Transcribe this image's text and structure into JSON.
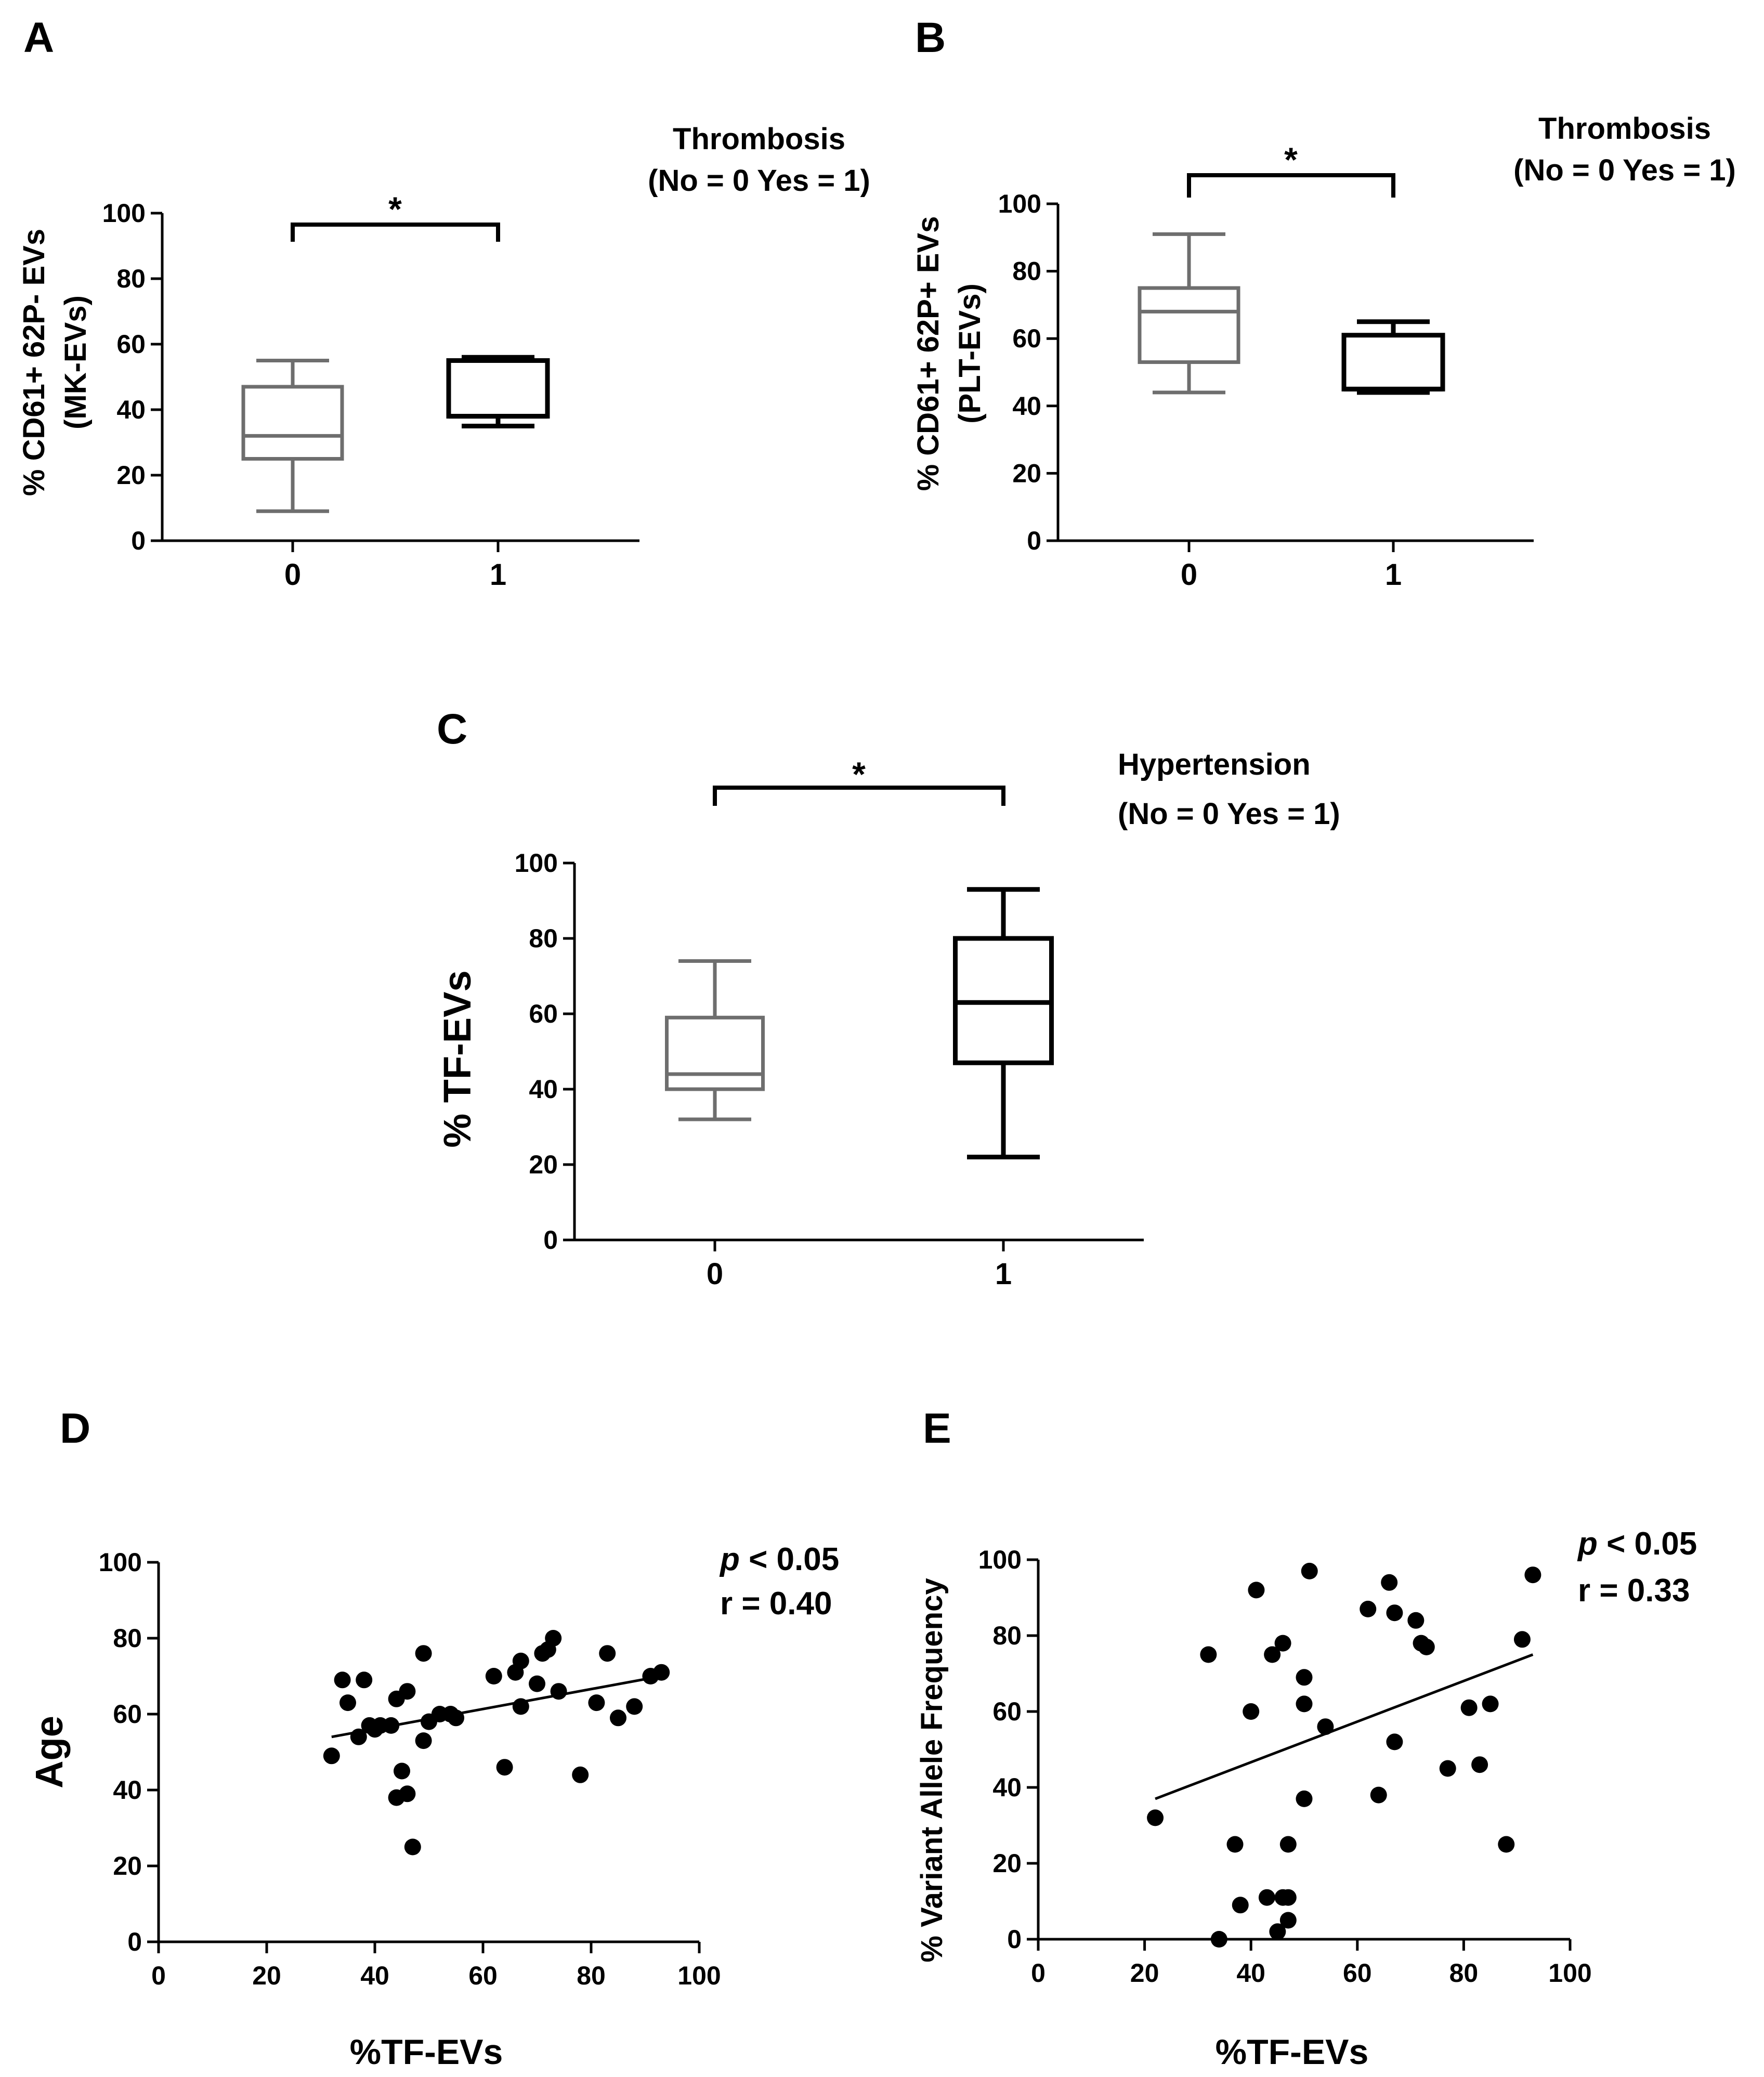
{
  "colors": {
    "group0": "#6e6e6e",
    "group1": "#000000",
    "axis": "#000000",
    "point": "#000000"
  },
  "chart_data": [
    {
      "id": "A",
      "type": "box",
      "panel_label": "A",
      "ylabel_lines": [
        "% CD61+ 62P- EVs",
        "(MK-EVs)"
      ],
      "legend_lines": [
        "Thrombosis",
        "(No = 0 Yes = 1)"
      ],
      "categories": [
        "0",
        "1"
      ],
      "yticks": [
        "0",
        "20",
        "40",
        "60",
        "80",
        "100"
      ],
      "ylim": [
        0,
        100
      ],
      "boxes": [
        {
          "category": "0",
          "min": 9,
          "q1": 25,
          "median": 32,
          "q3": 47,
          "max": 55
        },
        {
          "category": "1",
          "min": 35,
          "q1": 38,
          "median": 38,
          "q3": 55,
          "max": 56
        }
      ],
      "significance": "*"
    },
    {
      "id": "B",
      "type": "box",
      "panel_label": "B",
      "ylabel_lines": [
        "% CD61+ 62P+ EVs",
        "(PLT-EVs)"
      ],
      "legend_lines": [
        "Thrombosis",
        "(No = 0 Yes = 1)"
      ],
      "categories": [
        "0",
        "1"
      ],
      "yticks": [
        "0",
        "20",
        "40",
        "60",
        "80",
        "100"
      ],
      "ylim": [
        0,
        100
      ],
      "boxes": [
        {
          "category": "0",
          "min": 44,
          "q1": 53,
          "median": 68,
          "q3": 75,
          "max": 91
        },
        {
          "category": "1",
          "min": 44,
          "q1": 45,
          "median": 45,
          "q3": 61,
          "max": 65
        }
      ],
      "significance": "*"
    },
    {
      "id": "C",
      "type": "box",
      "panel_label": "C",
      "ylabel_lines": [
        "% TF-EVs"
      ],
      "legend_lines": [
        "Hypertension",
        "(No = 0 Yes = 1)"
      ],
      "categories": [
        "0",
        "1"
      ],
      "yticks": [
        "0",
        "20",
        "40",
        "60",
        "80",
        "100"
      ],
      "ylim": [
        0,
        100
      ],
      "boxes": [
        {
          "category": "0",
          "min": 32,
          "q1": 40,
          "median": 44,
          "q3": 59,
          "max": 74
        },
        {
          "category": "1",
          "min": 22,
          "q1": 47,
          "median": 63,
          "q3": 80,
          "max": 93
        }
      ],
      "significance": "*"
    },
    {
      "id": "D",
      "type": "scatter",
      "panel_label": "D",
      "xlabel": "%TF-EVs",
      "ylabel": "Age",
      "xticks": [
        "0",
        "20",
        "40",
        "60",
        "80",
        "100"
      ],
      "yticks": [
        "0",
        "20",
        "40",
        "60",
        "80",
        "100"
      ],
      "xlim": [
        0,
        100
      ],
      "ylim": [
        0,
        100
      ],
      "p_text": "p",
      "p_rest": " < 0.05",
      "r_text": "r = 0.40",
      "fit": {
        "x": [
          32,
          93
        ],
        "y": [
          54,
          70
        ]
      },
      "x": [
        32,
        34,
        35,
        37,
        38,
        39,
        40,
        41,
        43,
        44,
        44,
        45,
        46,
        46,
        47,
        49,
        49,
        50,
        52,
        54,
        55,
        62,
        64,
        66,
        67,
        67,
        70,
        71,
        72,
        73,
        74,
        78,
        81,
        83,
        85,
        88,
        91,
        93
      ],
      "y": [
        49,
        69,
        63,
        54,
        69,
        57,
        56,
        57,
        57,
        64,
        38,
        45,
        66,
        39,
        25,
        76,
        53,
        58,
        60,
        60,
        59,
        70,
        46,
        71,
        74,
        62,
        68,
        76,
        77,
        80,
        66,
        44,
        63,
        76,
        59,
        62,
        70,
        71
      ]
    },
    {
      "id": "E",
      "type": "scatter",
      "panel_label": "E",
      "xlabel": "%TF-EVs",
      "ylabel": "% Variant Allele Frequency",
      "xticks": [
        "0",
        "20",
        "40",
        "60",
        "80",
        "100"
      ],
      "yticks": [
        "0",
        "20",
        "40",
        "60",
        "80",
        "100"
      ],
      "xlim": [
        0,
        100
      ],
      "ylim": [
        0,
        100
      ],
      "p_text": "p",
      "p_rest": " < 0.05",
      "r_text": "r = 0.33",
      "fit": {
        "x": [
          22,
          93
        ],
        "y": [
          37,
          75
        ]
      },
      "x": [
        22,
        32,
        34,
        37,
        38,
        40,
        41,
        43,
        44,
        45,
        46,
        46,
        47,
        47,
        47,
        50,
        50,
        50,
        51,
        54,
        62,
        64,
        66,
        67,
        67,
        71,
        72,
        73,
        77,
        81,
        83,
        85,
        88,
        91,
        93
      ],
      "y": [
        32,
        75,
        0,
        25,
        9,
        60,
        92,
        11,
        75,
        2,
        78,
        11,
        5,
        25,
        11,
        37,
        62,
        69,
        97,
        56,
        87,
        38,
        94,
        52,
        86,
        84,
        78,
        77,
        45,
        61,
        46,
        62,
        25,
        79,
        96
      ]
    }
  ]
}
